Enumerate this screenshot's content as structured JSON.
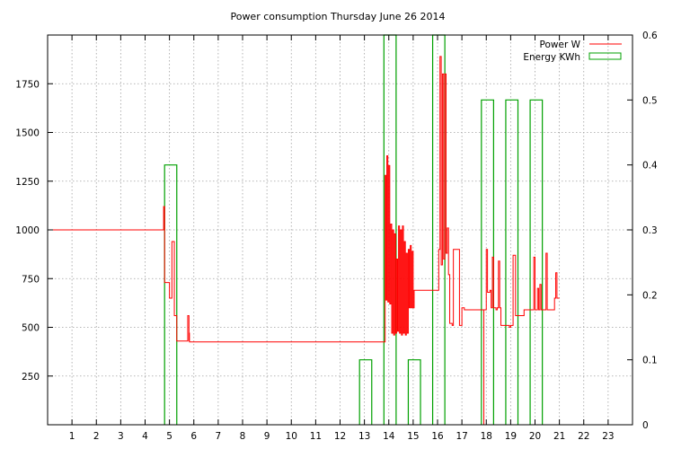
{
  "chart_data": {
    "type": "line",
    "title": "Power consumption Thursday June 26 2014",
    "xlabel": "",
    "ylabel": "",
    "x_ticks": [
      1,
      2,
      3,
      4,
      5,
      6,
      7,
      8,
      9,
      10,
      11,
      12,
      13,
      14,
      15,
      16,
      17,
      18,
      19,
      20,
      21,
      22,
      23
    ],
    "xlim": [
      0,
      24
    ],
    "y_left": {
      "ticks": [
        250,
        500,
        750,
        1000,
        1250,
        1500,
        1750
      ],
      "lim": [
        0,
        2000
      ]
    },
    "y_right": {
      "ticks": [
        0,
        0.1,
        0.2,
        0.3,
        0.4,
        0.5,
        0.6
      ],
      "lim": [
        0,
        0.6
      ]
    },
    "grid": true,
    "legend_position": "top-right",
    "series": [
      {
        "name": "Power W",
        "axis": "left",
        "color": "#ff0000",
        "x": [
          0,
          4.75,
          4.76,
          4.8,
          4.8,
          5.0,
          5.0,
          5.1,
          5.1,
          5.2,
          5.2,
          5.22,
          5.22,
          5.3,
          5.3,
          5.5,
          5.5,
          5.75,
          5.75,
          5.8,
          5.8,
          5.82,
          5.82,
          13.85,
          13.85,
          13.88,
          13.92,
          13.96,
          14.0,
          14.04,
          14.08,
          14.12,
          14.16,
          14.2,
          14.24,
          14.28,
          14.32,
          14.36,
          14.4,
          14.44,
          14.48,
          14.52,
          14.56,
          14.6,
          14.64,
          14.68,
          14.72,
          14.76,
          14.8,
          14.84,
          14.88,
          14.92,
          14.96,
          15.0,
          15.04,
          15.08,
          15.12,
          15.16,
          15.2,
          15.2,
          15.75,
          15.75,
          16.0,
          16.05,
          16.1,
          16.15,
          16.2,
          16.25,
          16.3,
          16.35,
          16.4,
          16.45,
          16.5,
          16.55,
          16.6,
          16.65,
          16.65,
          16.9,
          16.9,
          17.0,
          17.0,
          17.1,
          17.1,
          17.9,
          17.9,
          18.0,
          18.05,
          18.1,
          18.15,
          18.2,
          18.25,
          18.3,
          18.35,
          18.4,
          18.45,
          18.5,
          18.55,
          18.6,
          18.6,
          18.9,
          18.95,
          19.0,
          19.1,
          19.2,
          19.2,
          19.55,
          19.6,
          19.7,
          19.7,
          19.9,
          19.95,
          20.0,
          20.05,
          20.1,
          20.15,
          20.2,
          20.25,
          20.3,
          20.35,
          20.4,
          20.45,
          20.5,
          20.55,
          20.6,
          20.65,
          20.7,
          20.75,
          20.8,
          20.85,
          20.9,
          20.95,
          20.95,
          21.0
        ],
        "y": [
          1000,
          1000,
          1120,
          1000,
          730,
          730,
          650,
          650,
          940,
          650,
          560,
          560,
          560,
          560,
          430,
          430,
          430,
          430,
          560,
          430,
          470,
          430,
          425,
          425,
          1280,
          640,
          1380,
          630,
          1330,
          620,
          1030,
          470,
          1000,
          460,
          980,
          470,
          850,
          480,
          1020,
          470,
          1000,
          460,
          1020,
          470,
          940,
          460,
          880,
          470,
          900,
          600,
          920,
          600,
          890,
          600,
          690,
          690,
          690,
          690,
          690,
          690,
          690,
          690,
          690,
          900,
          1890,
          820,
          1800,
          850,
          1800,
          880,
          1010,
          770,
          520,
          520,
          510,
          520,
          900,
          520,
          510,
          590,
          600,
          590,
          590,
          590,
          590,
          900,
          680,
          680,
          690,
          600,
          860,
          600,
          600,
          590,
          600,
          840,
          600,
          590,
          510,
          510,
          500,
          510,
          870,
          580,
          560,
          590,
          590,
          590,
          590,
          590,
          860,
          590,
          590,
          700,
          590,
          720,
          590,
          590,
          590,
          590,
          880,
          590,
          590,
          590,
          590,
          590,
          590,
          650,
          780,
          650,
          650,
          650,
          650
        ],
        "note_spike": [
          17.9,
          0
        ]
      },
      {
        "name": "Energy KWh",
        "axis": "right",
        "color": "#00a000",
        "bars": [
          {
            "x": [
              4.8,
              5.3
            ],
            "value": 0.4
          },
          {
            "x": [
              12.8,
              13.3
            ],
            "value": 0.1
          },
          {
            "x": [
              13.8,
              14.3
            ],
            "value": 0.6
          },
          {
            "x": [
              14.8,
              15.3
            ],
            "value": 0.1
          },
          {
            "x": [
              15.8,
              16.3
            ],
            "value": 0.6
          },
          {
            "x": [
              17.8,
              18.3
            ],
            "value": 0.5
          },
          {
            "x": [
              18.8,
              19.3
            ],
            "value": 0.5
          },
          {
            "x": [
              19.8,
              20.3
            ],
            "value": 0.5
          }
        ]
      }
    ]
  }
}
